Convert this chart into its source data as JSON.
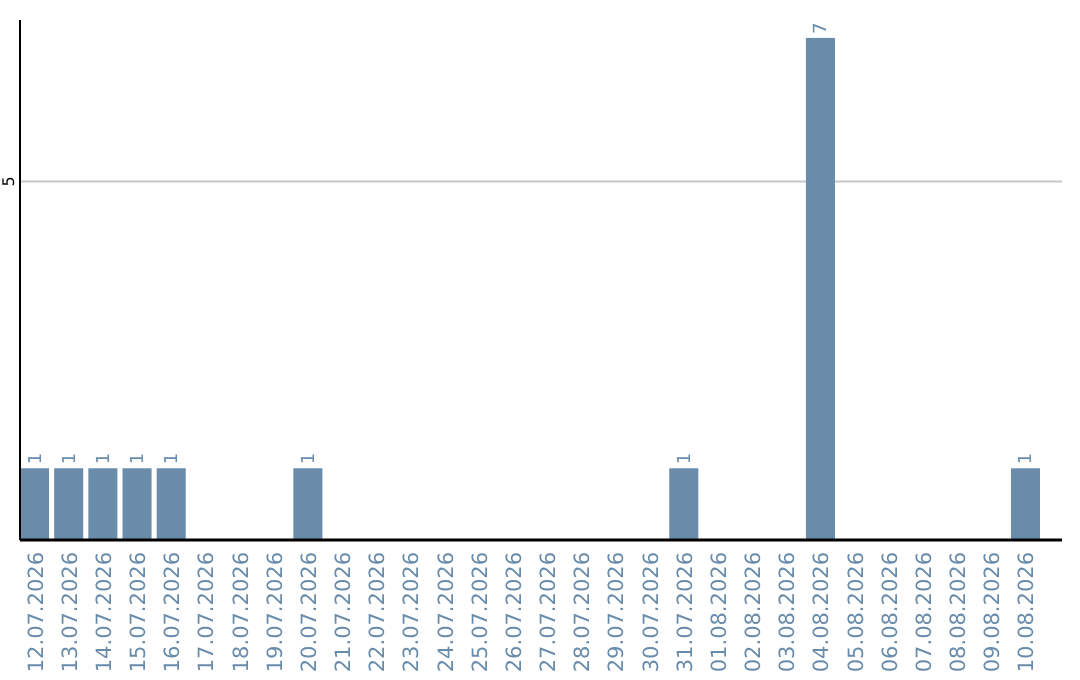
{
  "chart_data": {
    "type": "bar",
    "categories": [
      "12.07.2026",
      "13.07.2026",
      "14.07.2026",
      "15.07.2026",
      "16.07.2026",
      "17.07.2026",
      "18.07.2026",
      "19.07.2026",
      "20.07.2026",
      "21.07.2026",
      "22.07.2026",
      "23.07.2026",
      "24.07.2026",
      "25.07.2026",
      "26.07.2026",
      "27.07.2026",
      "28.07.2026",
      "29.07.2026",
      "30.07.2026",
      "31.07.2026",
      "01.08.2026",
      "02.08.2026",
      "03.08.2026",
      "04.08.2026",
      "05.08.2026",
      "06.08.2026",
      "07.08.2026",
      "08.08.2026",
      "09.08.2026",
      "10.08.2026"
    ],
    "values": [
      1,
      1,
      1,
      1,
      1,
      0,
      0,
      0,
      1,
      0,
      0,
      0,
      0,
      0,
      0,
      0,
      0,
      0,
      0,
      1,
      0,
      0,
      0,
      7,
      0,
      0,
      0,
      0,
      0,
      1
    ],
    "value_labels": [
      "1",
      "1",
      "1",
      "1",
      "1",
      null,
      null,
      null,
      "1",
      null,
      null,
      null,
      null,
      null,
      null,
      null,
      null,
      null,
      null,
      "1",
      null,
      null,
      null,
      "7",
      null,
      null,
      null,
      null,
      null,
      "1"
    ],
    "color": "#6a8cab",
    "ylim": [
      0,
      7.25
    ],
    "yticks": [
      5
    ],
    "grid": "y"
  }
}
